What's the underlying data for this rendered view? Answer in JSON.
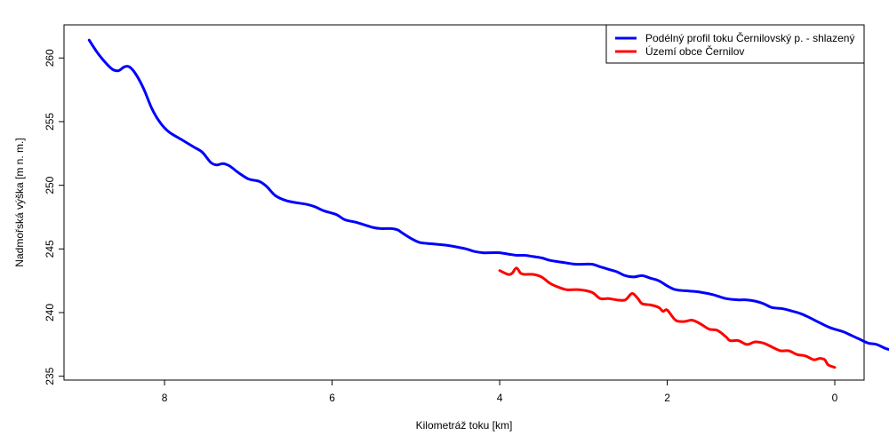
{
  "chart_data": {
    "type": "line",
    "xlabel": "Kilometráž toku [km]",
    "ylabel": "Nadmořská výška [m n. m.]",
    "xlim": [
      9.2,
      -0.35
    ],
    "ylim": [
      234.7,
      262.6
    ],
    "x_ticks": [
      8,
      6,
      4,
      2,
      0
    ],
    "y_ticks": [
      235,
      240,
      245,
      250,
      255,
      260
    ],
    "grid": false,
    "legend_position": "top-right",
    "series": [
      {
        "name": "Podélný profil toku Černilovský p. - shlazený",
        "color": "#0000ff",
        "points": [
          [
            8.9,
            261.4
          ],
          [
            8.8,
            260.4
          ],
          [
            8.7,
            259.6
          ],
          [
            8.62,
            259.1
          ],
          [
            8.55,
            259.0
          ],
          [
            8.48,
            259.3
          ],
          [
            8.42,
            259.3
          ],
          [
            8.35,
            258.8
          ],
          [
            8.25,
            257.6
          ],
          [
            8.15,
            256.0
          ],
          [
            8.05,
            254.9
          ],
          [
            7.95,
            254.2
          ],
          [
            7.8,
            253.6
          ],
          [
            7.65,
            253.0
          ],
          [
            7.55,
            252.6
          ],
          [
            7.45,
            251.8
          ],
          [
            7.38,
            251.6
          ],
          [
            7.3,
            251.7
          ],
          [
            7.22,
            251.5
          ],
          [
            7.12,
            251.0
          ],
          [
            7.0,
            250.5
          ],
          [
            6.87,
            250.3
          ],
          [
            6.78,
            249.9
          ],
          [
            6.68,
            249.2
          ],
          [
            6.55,
            248.8
          ],
          [
            6.4,
            248.6
          ],
          [
            6.3,
            248.5
          ],
          [
            6.2,
            248.3
          ],
          [
            6.1,
            248.0
          ],
          [
            5.95,
            247.7
          ],
          [
            5.85,
            247.3
          ],
          [
            5.72,
            247.1
          ],
          [
            5.62,
            246.9
          ],
          [
            5.52,
            246.7
          ],
          [
            5.42,
            246.6
          ],
          [
            5.3,
            246.6
          ],
          [
            5.22,
            246.5
          ],
          [
            5.15,
            246.2
          ],
          [
            5.05,
            245.8
          ],
          [
            4.95,
            245.5
          ],
          [
            4.8,
            245.4
          ],
          [
            4.65,
            245.3
          ],
          [
            4.55,
            245.2
          ],
          [
            4.4,
            245.0
          ],
          [
            4.3,
            244.8
          ],
          [
            4.2,
            244.7
          ],
          [
            4.1,
            244.7
          ],
          [
            4.0,
            244.7
          ],
          [
            3.9,
            244.6
          ],
          [
            3.8,
            244.5
          ],
          [
            3.7,
            244.5
          ],
          [
            3.6,
            244.4
          ],
          [
            3.5,
            244.3
          ],
          [
            3.4,
            244.1
          ],
          [
            3.3,
            244.0
          ],
          [
            3.2,
            243.9
          ],
          [
            3.1,
            243.8
          ],
          [
            3.0,
            243.8
          ],
          [
            2.9,
            243.8
          ],
          [
            2.8,
            243.6
          ],
          [
            2.7,
            243.4
          ],
          [
            2.6,
            243.2
          ],
          [
            2.5,
            242.9
          ],
          [
            2.4,
            242.8
          ],
          [
            2.3,
            242.9
          ],
          [
            2.2,
            242.7
          ],
          [
            2.1,
            242.5
          ],
          [
            2.0,
            242.1
          ],
          [
            1.9,
            241.8
          ],
          [
            1.75,
            241.7
          ],
          [
            1.6,
            241.6
          ],
          [
            1.45,
            241.4
          ],
          [
            1.3,
            241.1
          ],
          [
            1.15,
            241.0
          ],
          [
            1.05,
            241.0
          ],
          [
            0.95,
            240.9
          ],
          [
            0.85,
            240.7
          ],
          [
            0.75,
            240.4
          ],
          [
            0.62,
            240.3
          ],
          [
            0.5,
            240.1
          ],
          [
            0.4,
            239.9
          ],
          [
            0.3,
            239.6
          ],
          [
            0.15,
            239.1
          ],
          [
            0.05,
            238.8
          ],
          [
            -0.1,
            238.5
          ],
          [
            -0.2,
            238.2
          ],
          [
            -0.3,
            237.9
          ],
          [
            -0.4,
            237.6
          ],
          [
            -0.5,
            237.5
          ],
          [
            -0.6,
            237.2
          ],
          [
            -0.7,
            237.0
          ]
        ]
      },
      {
        "name": "Území obce Černilov",
        "color": "#ff0000",
        "points": [
          [
            4.0,
            243.3
          ],
          [
            3.9,
            243.0
          ],
          [
            3.85,
            243.1
          ],
          [
            3.8,
            243.5
          ],
          [
            3.75,
            243.1
          ],
          [
            3.7,
            243.0
          ],
          [
            3.6,
            243.0
          ],
          [
            3.5,
            242.8
          ],
          [
            3.4,
            242.3
          ],
          [
            3.3,
            242.0
          ],
          [
            3.2,
            241.8
          ],
          [
            3.05,
            241.8
          ],
          [
            2.9,
            241.6
          ],
          [
            2.8,
            241.1
          ],
          [
            2.7,
            241.1
          ],
          [
            2.6,
            241.0
          ],
          [
            2.5,
            241.0
          ],
          [
            2.42,
            241.5
          ],
          [
            2.35,
            241.1
          ],
          [
            2.3,
            240.7
          ],
          [
            2.2,
            240.6
          ],
          [
            2.1,
            240.4
          ],
          [
            2.05,
            240.1
          ],
          [
            2.0,
            240.2
          ],
          [
            1.9,
            239.4
          ],
          [
            1.8,
            239.3
          ],
          [
            1.7,
            239.4
          ],
          [
            1.6,
            239.1
          ],
          [
            1.5,
            238.7
          ],
          [
            1.4,
            238.6
          ],
          [
            1.3,
            238.1
          ],
          [
            1.25,
            237.8
          ],
          [
            1.15,
            237.8
          ],
          [
            1.05,
            237.5
          ],
          [
            0.95,
            237.7
          ],
          [
            0.85,
            237.6
          ],
          [
            0.75,
            237.3
          ],
          [
            0.65,
            237.0
          ],
          [
            0.55,
            237.0
          ],
          [
            0.45,
            236.7
          ],
          [
            0.35,
            236.6
          ],
          [
            0.25,
            236.3
          ],
          [
            0.18,
            236.4
          ],
          [
            0.12,
            236.3
          ],
          [
            0.08,
            235.9
          ],
          [
            0.0,
            235.7
          ]
        ]
      }
    ]
  }
}
